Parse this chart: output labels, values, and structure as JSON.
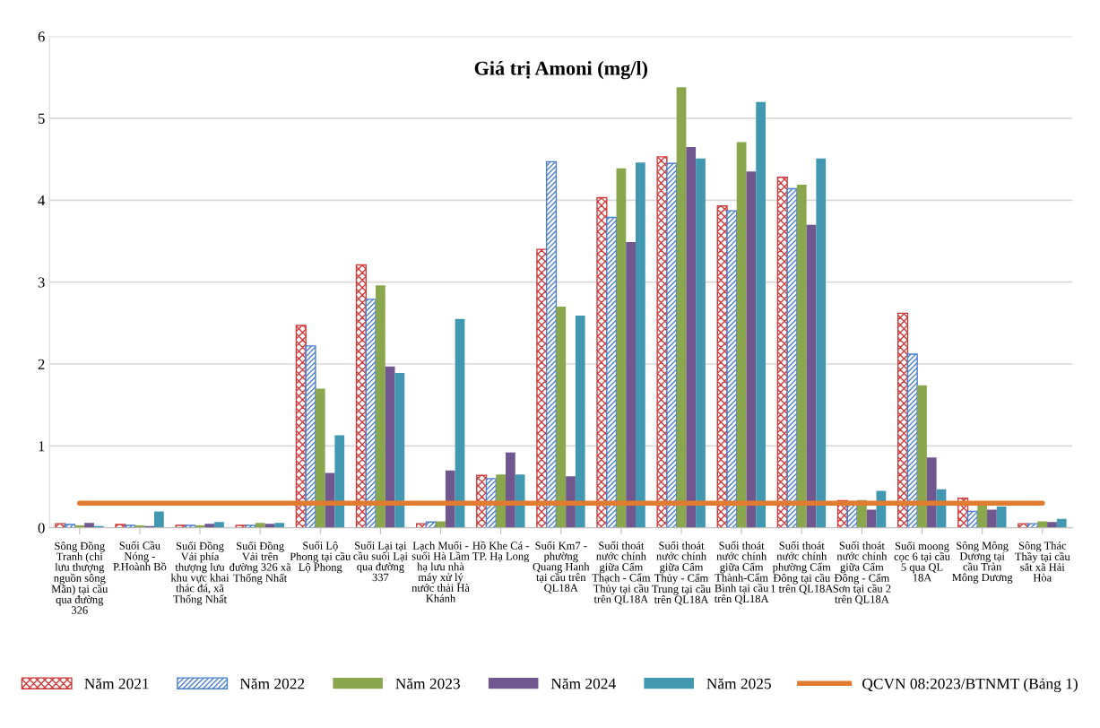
{
  "chart_data": {
    "type": "bar",
    "title": "Giá trị Amoni (mg/l)",
    "categories": [
      "Sông Đồng\nTranh (chi\nlưu thượng\nnguồn sông\nMằn) tại cầu\nqua đường\n326",
      "Suối Cầu\nNóng -\nP.Hoành Bồ",
      "Suối Đồng\nVải phía\nthượng lưu\nkhu vực khai\nthác đá, xã\nThống Nhất",
      "Suối Đồng\nVải trên\nđường 326 xã\nThống Nhất",
      "Suối Lộ\nPhong tại cầu\nLộ Phong",
      "Suối Lại tại\ncầu suối Lại\nqua đường\n337",
      "Lạch Muối -\nsuối Hà Lầm\nhạ lưu nhà\nmáy xử lý\nnước thải Hà\nKhánh",
      "Hồ Khe Cá -\nTP. Hạ Long",
      "Suối Km7 -\nphường\nQuang Hanh\ntại cầu trên\nQL18A",
      "Suối thoát\nnước chính\ngiữa Cẩm\nThạch - Cẩm\nThủy tại cầu\ntrên QL18A",
      "Suối thoát\nnước chính\ngiữa Cẩm\nThủy - Cẩm\nTrung tại cầu\ntrên QL18A",
      "Suối thoát\nnước chính\ngiữa Cẩm\nThành-Cẩm\nBình tại cầu\ntrên QL18A",
      "Suối thoát\nnước chính\nphường Cẩm\nĐông tại cầu\n1 trên QL18A",
      "Suối thoát\nnước chính\ngiữa Cẩm\nĐông - Cẩm\nSơn tại cầu 2\ntrên QL18A",
      "Suối moong\ncọc 6 tại cầu\n5 qua QL\n18A",
      "Sông Mông\nDương tại\ncầu Tràn\nMông Dương",
      "Sông Thác\nThầy tại cầu\nsắt xã Hải\nHòa"
    ],
    "series": [
      {
        "name": "Năm 2021",
        "color": "#d03a3a",
        "values": [
          0.05,
          0.04,
          0.03,
          0.03,
          2.47,
          3.21,
          0.05,
          0.64,
          3.4,
          4.03,
          4.53,
          3.93,
          4.28,
          0.33,
          2.62,
          0.36,
          0.05
        ]
      },
      {
        "name": "Năm 2022",
        "color": "#4a7fd0",
        "values": [
          0.04,
          0.03,
          0.03,
          0.03,
          2.22,
          2.79,
          0.07,
          0.6,
          4.47,
          3.79,
          4.45,
          3.87,
          4.14,
          0.32,
          2.12,
          0.2,
          0.05
        ]
      },
      {
        "name": "Năm 2023",
        "color": "#8aa74e",
        "values": [
          0.03,
          0.03,
          0.03,
          0.06,
          1.7,
          2.96,
          0.08,
          0.65,
          2.7,
          4.39,
          5.38,
          4.71,
          4.19,
          0.34,
          1.74,
          0.28,
          0.08
        ]
      },
      {
        "name": "Năm 2024",
        "color": "#71578f",
        "values": [
          0.06,
          0.02,
          0.05,
          0.05,
          0.67,
          1.97,
          0.7,
          0.92,
          0.63,
          3.49,
          4.65,
          4.35,
          3.7,
          0.22,
          0.86,
          0.22,
          0.07
        ]
      },
      {
        "name": "Năm 2025",
        "color": "#4298b1",
        "values": [
          0.02,
          0.2,
          0.07,
          0.06,
          1.13,
          1.89,
          2.55,
          0.65,
          2.59,
          4.46,
          4.51,
          5.2,
          4.51,
          0.45,
          0.47,
          0.26,
          0.11
        ]
      },
      {
        "name": "QCVN 08:2023/BTNMT (Bảng 1)",
        "type": "line",
        "color": "#e07b2f",
        "values": [
          0.3,
          0.3,
          0.3,
          0.3,
          0.3,
          0.3,
          0.3,
          0.3,
          0.3,
          0.3,
          0.3,
          0.3,
          0.3,
          0.3,
          0.3,
          0.3,
          0.3
        ]
      }
    ],
    "ylim": [
      0,
      6
    ],
    "yticks": [
      0,
      1,
      2,
      3,
      4,
      5,
      6
    ],
    "grid": "y",
    "legend": "bottom"
  }
}
